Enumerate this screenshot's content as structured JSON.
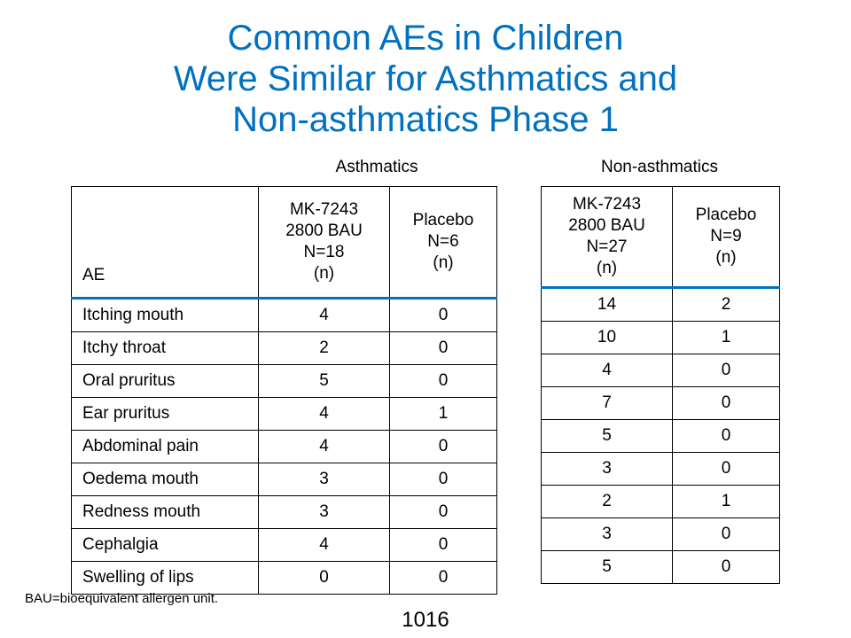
{
  "title": {
    "line1": "Common AEs in Children",
    "line2": "Were Similar for Asthmatics and",
    "line3": "Non-asthmatics Phase 1"
  },
  "groups": {
    "asthmatics": "Asthmatics",
    "non_asthmatics": "Non-asthmatics"
  },
  "asthmatics_table": {
    "headers": {
      "ae": "AE",
      "drug": [
        "MK-7243",
        "2800 BAU",
        "N=18",
        "(n)"
      ],
      "placebo": [
        "Placebo",
        "N=6",
        "(n)"
      ]
    },
    "rows": [
      {
        "ae": "Itching mouth",
        "drug": "4",
        "placebo": "0"
      },
      {
        "ae": "Itchy throat",
        "drug": "2",
        "placebo": "0"
      },
      {
        "ae": "Oral pruritus",
        "drug": "5",
        "placebo": "0"
      },
      {
        "ae": "Ear pruritus",
        "drug": "4",
        "placebo": "1"
      },
      {
        "ae": "Abdominal pain",
        "drug": "4",
        "placebo": "0"
      },
      {
        "ae": "Oedema mouth",
        "drug": "3",
        "placebo": "0"
      },
      {
        "ae": "Redness mouth",
        "drug": "3",
        "placebo": "0"
      },
      {
        "ae": "Cephalgia",
        "drug": "4",
        "placebo": "0"
      },
      {
        "ae": "Swelling of lips",
        "drug": "0",
        "placebo": "0"
      }
    ]
  },
  "non_asthmatics_table": {
    "headers": {
      "drug": [
        "MK-7243",
        "2800 BAU",
        "N=27",
        "(n)"
      ],
      "placebo": [
        "Placebo",
        "N=9",
        "(n)"
      ]
    },
    "rows": [
      {
        "drug": "14",
        "placebo": "2"
      },
      {
        "drug": "10",
        "placebo": "1"
      },
      {
        "drug": "4",
        "placebo": "0"
      },
      {
        "drug": "7",
        "placebo": "0"
      },
      {
        "drug": "5",
        "placebo": "0"
      },
      {
        "drug": "3",
        "placebo": "0"
      },
      {
        "drug": "2",
        "placebo": "1"
      },
      {
        "drug": "3",
        "placebo": "0"
      },
      {
        "drug": "5",
        "placebo": "0"
      }
    ]
  },
  "footnote": "BAU=bioequivalent allergen unit.",
  "page_number": "1016",
  "colors": {
    "title": "#0070C0",
    "header_rule": "#0070C0",
    "text": "#000000"
  }
}
